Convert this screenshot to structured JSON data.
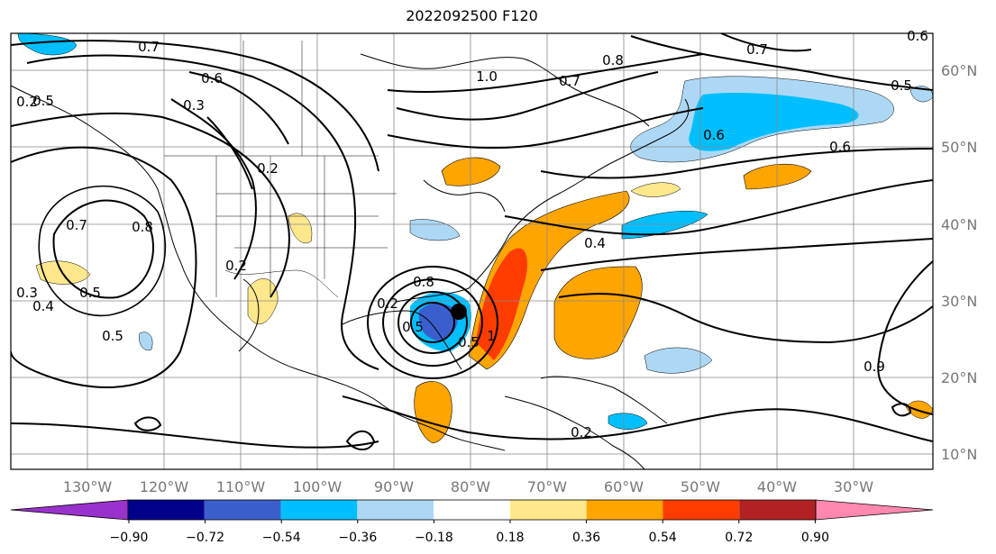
{
  "title": "2022092500 F120",
  "map": {
    "lon_ticks": [
      "130°W",
      "120°W",
      "110°W",
      "100°W",
      "90°W",
      "80°W",
      "70°W",
      "60°W",
      "50°W",
      "40°W",
      "30°W"
    ],
    "lat_ticks": [
      "60°N",
      "50°N",
      "40°N",
      "30°N",
      "20°N",
      "10°N"
    ],
    "contour_labels": [
      "0.7",
      "0.5",
      "0.6",
      "0.3",
      "0.2",
      "0.7",
      "0.8",
      "0.5",
      "0.2",
      "0.3",
      "0.4",
      "0.5",
      "1.0",
      "0.8",
      "0.7",
      "0.6",
      "0.6",
      "0.4",
      "0.2",
      "0.2",
      "0.5",
      "0.6",
      "0.7",
      "0.5",
      "0.8",
      "0.9",
      "0.5",
      "1",
      "0.2"
    ],
    "storm_marker": "storm-center"
  },
  "colorbar": {
    "ticks": [
      "−0.90",
      "−0.72",
      "−0.54",
      "−0.36",
      "−0.18",
      "0.18",
      "0.36",
      "0.54",
      "0.72",
      "0.90"
    ],
    "colors": [
      "#9932cc",
      "#00008b",
      "#3a5fcd",
      "#00bfff",
      "#add8f5",
      "#ffffff",
      "#ffe88c",
      "#ffa500",
      "#ff3c00",
      "#b22222",
      "#ff88b0"
    ]
  }
}
